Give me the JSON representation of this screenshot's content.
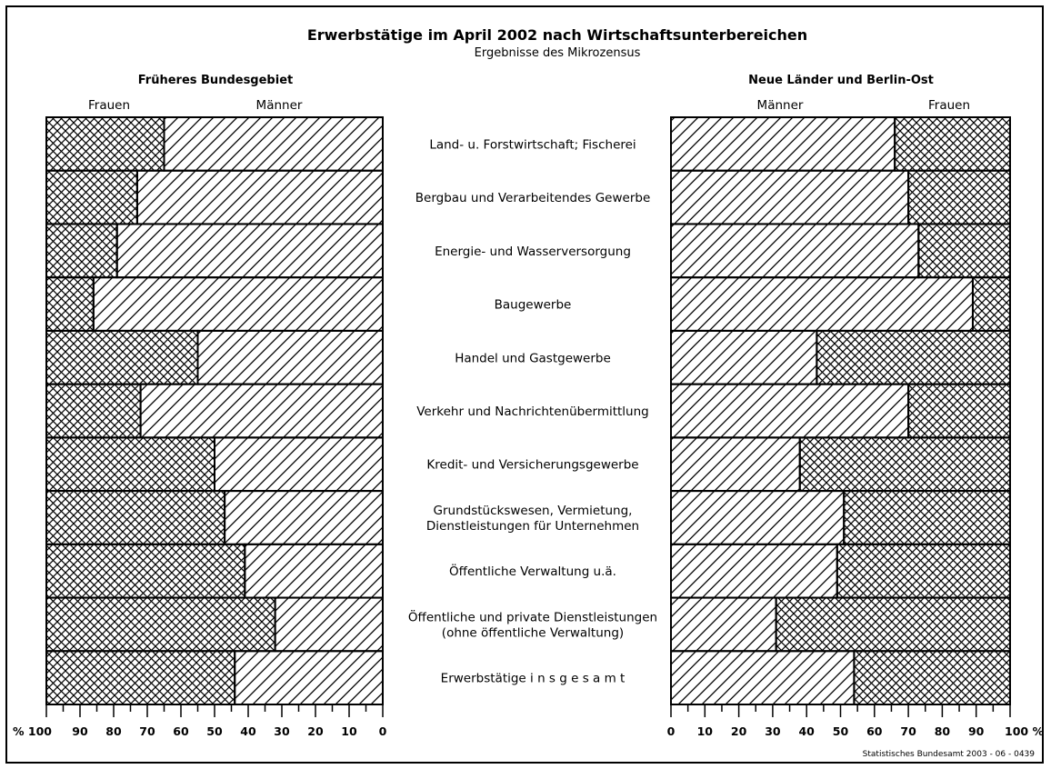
{
  "chart_data": {
    "type": "bar",
    "title": "Erwerbstätige im April 2002 nach Wirtschaftsunterbereichen",
    "subtitle": "Ergebnisse des Mikrozensus",
    "source": "Statistisches Bundesamt 2003 - 06 - 0439",
    "categories": [
      "Land- u. Forstwirtschaft; Fischerei",
      "Bergbau und Verarbeitendes Gewerbe",
      "Energie- und Wasserversorgung",
      "Baugewerbe",
      "Handel und Gastgewerbe",
      "Verkehr und Nachrichtenübermittlung",
      "Kredit- und Versicherungsgewerbe",
      "Grundstückswesen, Vermietung,\nDienstleistungen für Unternehmen",
      "Öffentliche Verwaltung u.ä.",
      "Öffentliche und private Dienstleistungen\n(ohne öffentliche Verwaltung)",
      "Erwerbstätige i n s g e s a m t"
    ],
    "panels": [
      {
        "title": "Früheres Bundesgebiet",
        "legend_left": "Frauen",
        "legend_right": "Männer",
        "orientation": "women-left",
        "series": [
          {
            "name": "Frauen",
            "values": [
              35,
              27,
              21,
              14,
              45,
              28,
              50,
              53,
              59,
              68,
              56
            ]
          },
          {
            "name": "Männer",
            "values": [
              65,
              73,
              79,
              86,
              55,
              72,
              50,
              47,
              41,
              32,
              44
            ]
          }
        ],
        "axis_ticks": [
          "% 100",
          "90",
          "80",
          "70",
          "60",
          "50",
          "40",
          "30",
          "20",
          "10",
          "0"
        ],
        "xlim": [
          100,
          0
        ]
      },
      {
        "title": "Neue Länder und Berlin-Ost",
        "legend_left": "Männer",
        "legend_right": "Frauen",
        "orientation": "men-left",
        "series": [
          {
            "name": "Männer",
            "values": [
              66,
              70,
              73,
              89,
              43,
              70,
              38,
              51,
              49,
              31,
              54
            ]
          },
          {
            "name": "Frauen",
            "values": [
              34,
              30,
              27,
              11,
              57,
              30,
              62,
              49,
              51,
              69,
              46
            ]
          }
        ],
        "axis_ticks": [
          "0",
          "10",
          "20",
          "30",
          "40",
          "50",
          "60",
          "70",
          "80",
          "90",
          "100 %"
        ],
        "xlim": [
          0,
          100
        ]
      }
    ],
    "xlabel": "",
    "ylabel": "",
    "unit": "%",
    "grid": false
  }
}
